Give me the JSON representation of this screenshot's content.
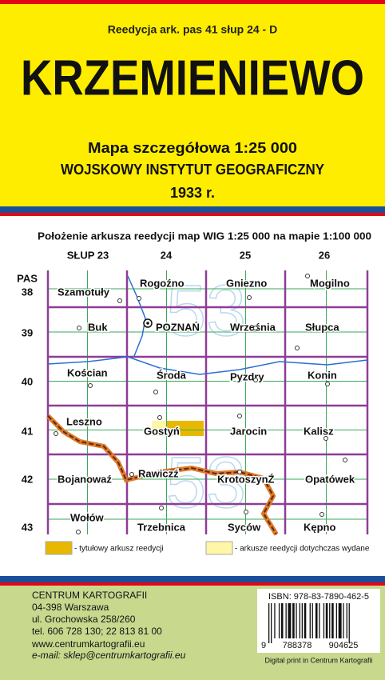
{
  "header": {
    "edition": "Reedycja ark. pas 41 słup 24 - D",
    "title": "KRZEMIENIEWO",
    "subtitle": "Mapa szczegółowa 1:25 000",
    "publisher": "WOJSKOWY INSTYTUT GEOGRAFICZNY",
    "year": "1933 r."
  },
  "index_map": {
    "caption": "Położenie arkusza reedycji map WIG 1:25 000 na mapie 1:100 000",
    "columns": [
      "SŁUP 23",
      "24",
      "25",
      "26"
    ],
    "row_prefix": "PAS",
    "rows": [
      "38",
      "39",
      "40",
      "41",
      "42",
      "43"
    ],
    "places": [
      "Szamotuły",
      "Rogoźno",
      "Gniezno",
      "Mogilno",
      "Buk",
      "POZNAŃ",
      "Września",
      "Słupca",
      "Kościan",
      "Środa",
      "Pyzdry",
      "Konin",
      "Leszno",
      "Gostyń",
      "Jarocin",
      "Kalisz",
      "Bojanowaź",
      "Rawiczź",
      "KrotoszynŹ",
      "Opatówek",
      "Wołów",
      "Trzebnica",
      "Syców",
      "Kępno"
    ],
    "sheet_numbers": [
      "53",
      "53"
    ],
    "legend": [
      "- tytułowy arkusz reedycji",
      "- arkusze reedycji dotychczas wydane"
    ]
  },
  "footer": {
    "address": [
      "CENTRUM KARTOGRAFII",
      "04-398 Warszawa",
      "ul. Grochowska 258/260",
      "tel. 606 728 130;  22 813 81 00",
      "www.centrumkartografii.eu",
      "e-mail: sklep@centrumkartografii.eu"
    ],
    "isbn": "ISBN:  978-83-7890-462-5",
    "barcode_digits": [
      "9",
      "788378",
      "904625"
    ],
    "print_note": "Digital print in Centrum Kartografii"
  }
}
